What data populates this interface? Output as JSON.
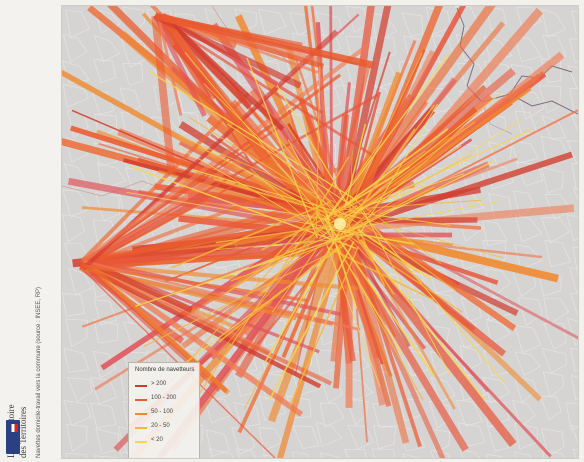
{
  "map": {
    "credit_line1": "L'Observatoire",
    "credit_line2": "des Territoires",
    "caption": "Navettes domicile-travail vers la commune (source : INSEE, RP)",
    "legend": {
      "title": "Nombre de navetteurs",
      "classes": [
        {
          "label": "> 200",
          "color": "#d23a2c"
        },
        {
          "label": "100 - 200",
          "color": "#ea5a2e"
        },
        {
          "label": "50 - 100",
          "color": "#f0892f"
        },
        {
          "label": "20 - 50",
          "color": "#f6b63a"
        },
        {
          "label": "< 20",
          "color": "#f8d64a"
        }
      ]
    }
  },
  "colors": {
    "background": "#d6d4d3",
    "commune_borders": "#e6e4e2",
    "dept_borders": "#7a6d86",
    "flow_warm": "#ee5a2e"
  }
}
